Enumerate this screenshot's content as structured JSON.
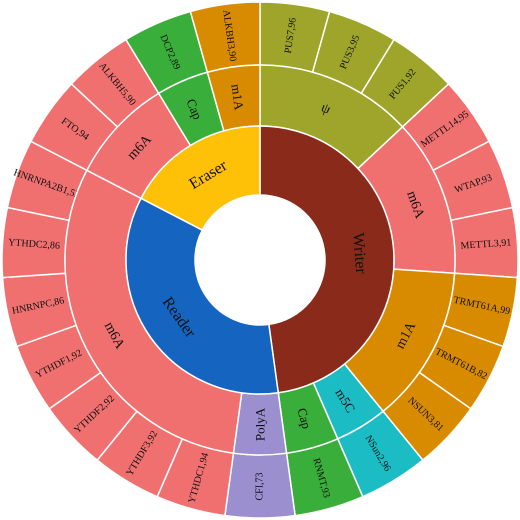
{
  "chart_data": {
    "type": "sunburst",
    "title": "",
    "colors": {
      "Writer": "#8a2a1a",
      "Reader": "#1565c0",
      "Eraser": "#ffc107",
      "m6A": "#f07070",
      "m1A": "#d98b00",
      "psi": "#9ea52a",
      "m5C": "#1cbcc4",
      "Cap": "#3aae3a",
      "PolyA": "#9b8fd0",
      "border": "#ffffff"
    },
    "categories": [
      {
        "name": "Writer",
        "color_key": "Writer",
        "groups": [
          {
            "name": "ψ",
            "color_key": "psi",
            "items": [
              {
                "label": "PUS7,96",
                "value": 96
              },
              {
                "label": "PUS3,95",
                "value": 95
              },
              {
                "label": "PUS1,92",
                "value": 92
              }
            ]
          },
          {
            "name": "m6A",
            "color_key": "m6A",
            "items": [
              {
                "label": "METTL14,95",
                "value": 95
              },
              {
                "label": "WTAP,93",
                "value": 93
              },
              {
                "label": "METTL3,91",
                "value": 91
              }
            ]
          },
          {
            "name": "m1A",
            "color_key": "m1A",
            "items": [
              {
                "label": "TRMT61A,99",
                "value": 99
              },
              {
                "label": "TRMT61B,82",
                "value": 82
              },
              {
                "label": "NSUN3,81",
                "value": 81
              }
            ]
          },
          {
            "name": "m5C",
            "color_key": "m5C",
            "items": [
              {
                "label": "NSun2,96",
                "value": 96
              }
            ]
          },
          {
            "name": "Cap",
            "color_key": "Cap",
            "items": [
              {
                "label": "RNMT,93",
                "value": 93
              }
            ]
          }
        ]
      },
      {
        "name": "Reader",
        "color_key": "Reader",
        "groups": [
          {
            "name": "PolyA",
            "color_key": "PolyA",
            "items": [
              {
                "label": "CFI,73",
                "value": 73
              }
            ]
          },
          {
            "name": "m6A",
            "color_key": "m6A",
            "items": [
              {
                "label": "YTHDC1,94",
                "value": 94
              },
              {
                "label": "YTHDF3,92",
                "value": 92
              },
              {
                "label": "YTHDF2,92",
                "value": 92
              },
              {
                "label": "YTHDF1,92",
                "value": 92
              },
              {
                "label": "HNRNPC,86",
                "value": 86
              },
              {
                "label": "YTHDC2,86",
                "value": 86
              },
              {
                "label": "HNRNPA2B1,52",
                "value": 52
              }
            ]
          }
        ]
      },
      {
        "name": "Eraser",
        "color_key": "Eraser",
        "groups": [
          {
            "name": "m6A",
            "color_key": "m6A",
            "items": [
              {
                "label": "FTO,94",
                "value": 94
              },
              {
                "label": "ALKBH5,90",
                "value": 90
              }
            ]
          },
          {
            "name": "Cap",
            "color_key": "Cap",
            "items": [
              {
                "label": "DCP2,89",
                "value": 89
              }
            ]
          },
          {
            "name": "m1A",
            "color_key": "m1A",
            "items": [
              {
                "label": "ALKBH3,90",
                "value": 90
              }
            ]
          }
        ]
      }
    ]
  }
}
